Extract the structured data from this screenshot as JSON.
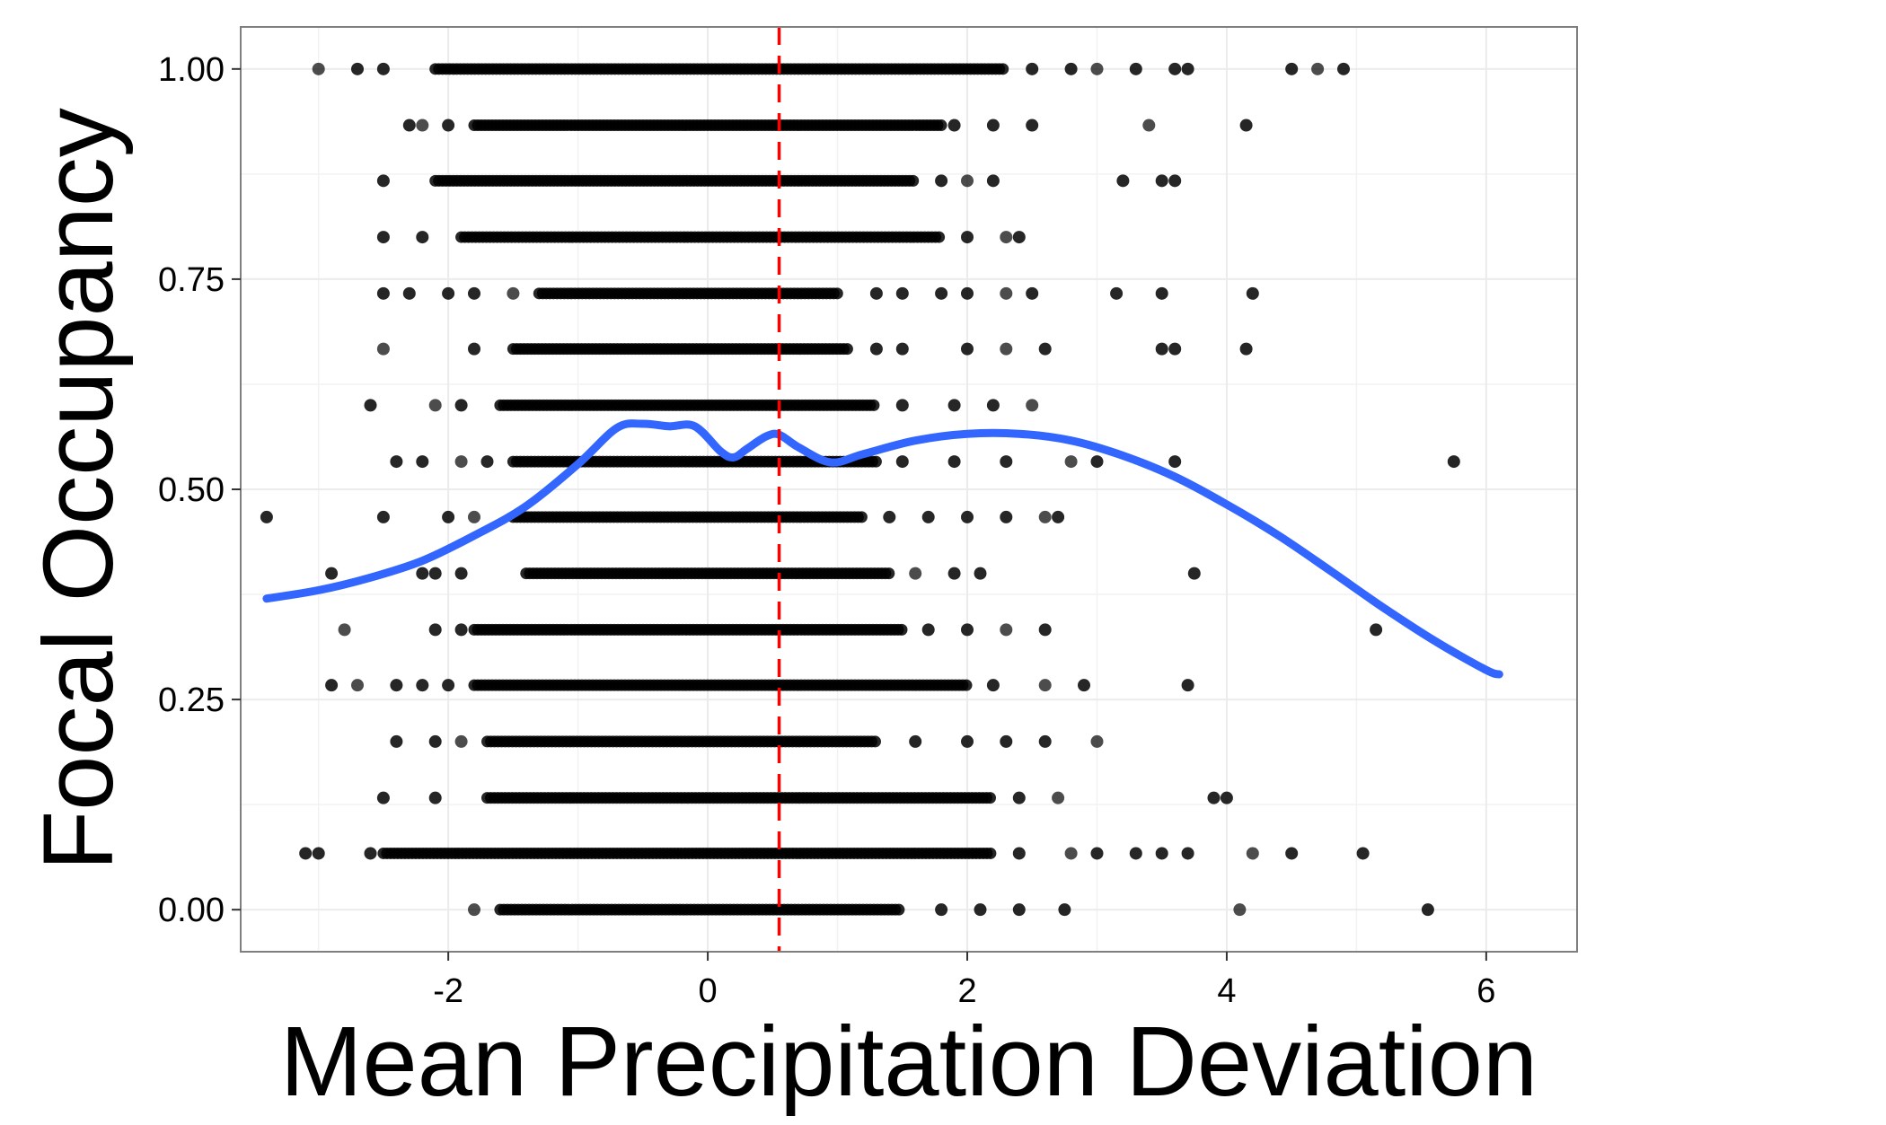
{
  "chart_data": {
    "type": "scatter",
    "title": "",
    "xlabel": "Mean Precipitation Deviation",
    "ylabel": "Focal Occupancy",
    "xlim": [
      -3.6,
      6.7
    ],
    "ylim": [
      -0.05,
      1.05
    ],
    "x_ticks": [
      -2,
      0,
      2,
      4,
      6
    ],
    "x_tick_labels": [
      "-2",
      "0",
      "2",
      "4",
      "6"
    ],
    "y_ticks": [
      0.0,
      0.25,
      0.5,
      0.75,
      1.0
    ],
    "y_tick_labels": [
      "0.00",
      "0.25",
      "0.50",
      "0.75",
      "1.00"
    ],
    "grid": true,
    "legend": "none",
    "points_description": "dense horizontal bands of points at discrete occupancy levels",
    "rows": [
      {
        "y": 1.0,
        "dense_range": [
          -2.1,
          2.3
        ],
        "outliers": [
          -3.0,
          -2.7,
          -2.5,
          2.5,
          2.8,
          3.0,
          3.3,
          3.6,
          3.7,
          4.5,
          4.7,
          4.9
        ]
      },
      {
        "y": 0.933,
        "dense_range": [
          -1.8,
          1.8
        ],
        "outliers": [
          -2.3,
          -2.2,
          -2.0,
          1.9,
          2.2,
          2.5,
          3.4,
          4.15
        ]
      },
      {
        "y": 0.867,
        "dense_range": [
          -2.1,
          1.6
        ],
        "outliers": [
          -2.5,
          1.8,
          2.0,
          2.2,
          3.2,
          3.5,
          3.6
        ]
      },
      {
        "y": 0.8,
        "dense_range": [
          -1.9,
          1.8
        ],
        "outliers": [
          -2.5,
          -2.2,
          2.0,
          2.3,
          2.4
        ]
      },
      {
        "y": 0.733,
        "dense_range": [
          -1.3,
          1.0
        ],
        "outliers": [
          -2.5,
          -2.3,
          -2.0,
          -1.8,
          -1.5,
          1.3,
          1.5,
          1.8,
          2.0,
          2.3,
          2.5,
          3.15,
          3.5,
          4.2
        ]
      },
      {
        "y": 0.667,
        "dense_range": [
          -1.5,
          1.1
        ],
        "outliers": [
          -2.5,
          -1.8,
          1.3,
          1.5,
          2.0,
          2.3,
          2.6,
          3.5,
          3.6,
          4.15
        ]
      },
      {
        "y": 0.6,
        "dense_range": [
          -1.6,
          1.3
        ],
        "outliers": [
          -2.6,
          -2.1,
          -1.9,
          1.5,
          1.9,
          2.2,
          2.5
        ]
      },
      {
        "y": 0.533,
        "dense_range": [
          -1.5,
          1.3
        ],
        "outliers": [
          -2.4,
          -2.2,
          -1.9,
          -1.7,
          1.5,
          1.9,
          2.3,
          2.8,
          3.0,
          3.6,
          5.75
        ]
      },
      {
        "y": 0.467,
        "dense_range": [
          -1.5,
          1.2
        ],
        "outliers": [
          -3.4,
          -2.5,
          -2.0,
          -1.8,
          1.4,
          1.7,
          2.0,
          2.3,
          2.6,
          2.7
        ]
      },
      {
        "y": 0.4,
        "dense_range": [
          -1.4,
          1.4
        ],
        "outliers": [
          -2.9,
          -2.2,
          -2.1,
          -1.9,
          1.6,
          1.9,
          2.1,
          3.75
        ]
      },
      {
        "y": 0.333,
        "dense_range": [
          -1.8,
          1.5
        ],
        "outliers": [
          -2.8,
          -2.1,
          -1.9,
          1.7,
          2.0,
          2.3,
          2.6,
          5.15
        ]
      },
      {
        "y": 0.267,
        "dense_range": [
          -1.8,
          2.0
        ],
        "outliers": [
          -2.9,
          -2.7,
          -2.4,
          -2.2,
          -2.0,
          2.2,
          2.6,
          2.9,
          3.7
        ]
      },
      {
        "y": 0.2,
        "dense_range": [
          -1.7,
          1.3
        ],
        "outliers": [
          -2.4,
          -2.1,
          -1.9,
          1.6,
          2.0,
          2.3,
          2.6,
          3.0
        ]
      },
      {
        "y": 0.133,
        "dense_range": [
          -1.7,
          2.2
        ],
        "outliers": [
          -2.5,
          -2.1,
          2.4,
          2.7,
          3.9,
          4.0
        ]
      },
      {
        "y": 0.067,
        "dense_range": [
          -2.5,
          2.2
        ],
        "outliers": [
          -3.1,
          -3.0,
          -2.6,
          2.4,
          2.8,
          3.0,
          3.3,
          3.5,
          3.7,
          4.2,
          4.5,
          5.05
        ]
      },
      {
        "y": 0.0,
        "dense_range": [
          -1.6,
          1.5
        ],
        "outliers": [
          -1.8,
          1.8,
          2.1,
          2.4,
          2.75,
          4.1,
          5.55
        ]
      }
    ],
    "smooth_line": {
      "color": "#3366FF",
      "x": [
        -3.4,
        -3.0,
        -2.6,
        -2.2,
        -1.8,
        -1.4,
        -1.0,
        -0.7,
        -0.5,
        -0.3,
        -0.1,
        0.1,
        0.2,
        0.3,
        0.45,
        0.55,
        0.7,
        0.95,
        1.2,
        1.6,
        2.0,
        2.4,
        2.8,
        3.2,
        3.6,
        4.0,
        4.4,
        4.8,
        5.2,
        5.6,
        6.0,
        6.1
      ],
      "y": [
        0.37,
        0.38,
        0.395,
        0.415,
        0.445,
        0.48,
        0.53,
        0.573,
        0.578,
        0.575,
        0.575,
        0.545,
        0.538,
        0.548,
        0.563,
        0.565,
        0.55,
        0.532,
        0.542,
        0.558,
        0.566,
        0.566,
        0.558,
        0.54,
        0.515,
        0.482,
        0.445,
        0.403,
        0.36,
        0.32,
        0.285,
        0.28
      ]
    },
    "reference_line": {
      "x": 0.55,
      "color": "#FF0000",
      "style": "dashed"
    }
  }
}
